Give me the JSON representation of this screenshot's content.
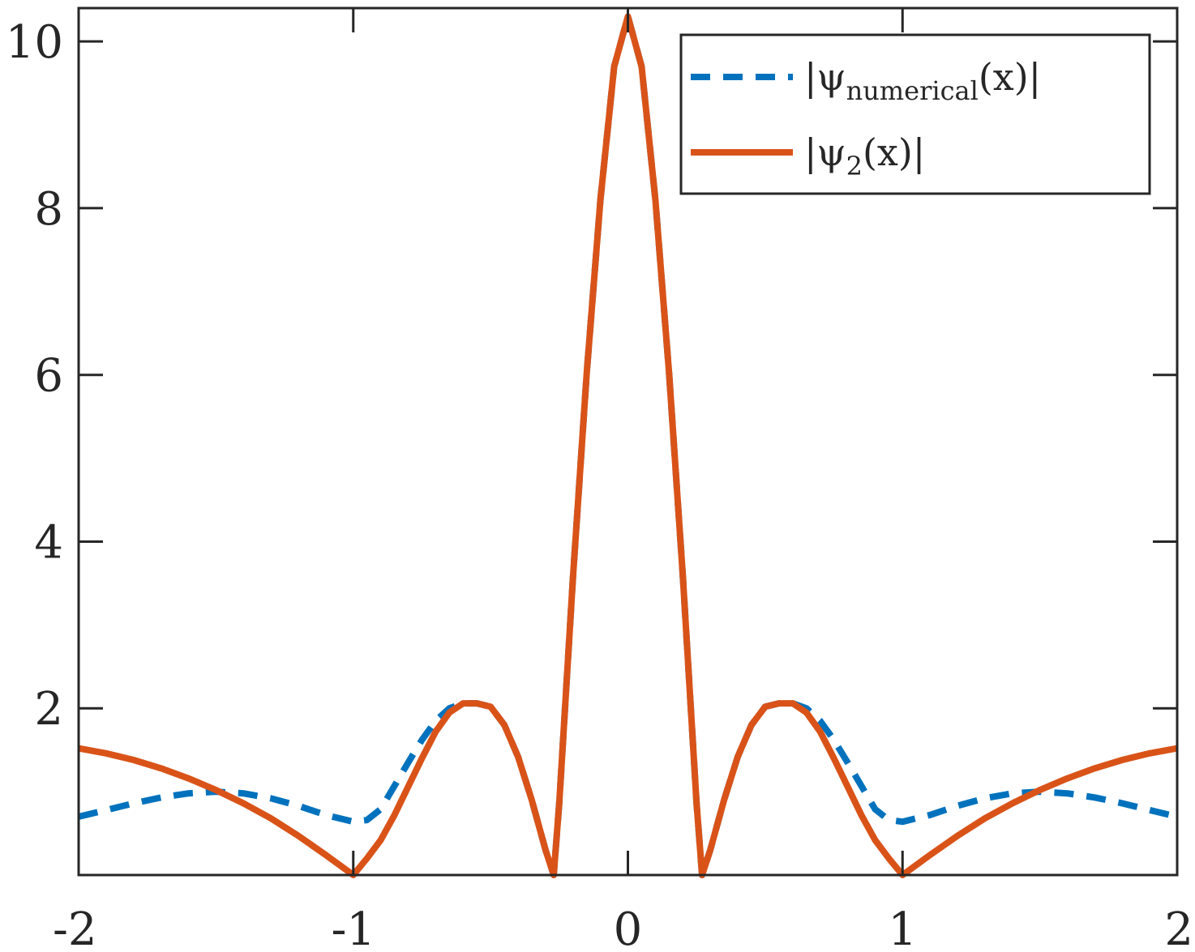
{
  "chart_data": {
    "type": "line",
    "xlim": [
      -2,
      2
    ],
    "ylim": [
      0,
      10.4
    ],
    "xticks": [
      -2,
      -1,
      0,
      1,
      2
    ],
    "yticks": [
      2,
      4,
      6,
      8,
      10
    ],
    "xtick_labels": [
      "-2",
      "-1",
      "0",
      "1",
      "2"
    ],
    "ytick_labels": [
      "2",
      "4",
      "6",
      "8",
      "10"
    ],
    "grid": false,
    "legend_position": "top-right",
    "series": [
      {
        "name": "|ψnumerical(x)|",
        "label_main": "|ψ",
        "label_sub": "numerical",
        "label_tail": "(x)|",
        "color": "#0072BD",
        "style": "dashed",
        "x": [
          -2.0,
          -1.9,
          -1.8,
          -1.7,
          -1.6,
          -1.5,
          -1.4,
          -1.3,
          -1.2,
          -1.1,
          -1.0,
          -0.95,
          -0.9,
          -0.85,
          -0.8,
          -0.75,
          -0.7,
          -0.65,
          -0.6,
          -0.55,
          -0.5,
          -0.45,
          -0.4,
          -0.35,
          -0.3,
          -0.27,
          -0.25,
          -0.2,
          -0.15,
          -0.1,
          -0.05,
          0.0,
          0.05,
          0.1,
          0.15,
          0.2,
          0.25,
          0.27,
          0.3,
          0.35,
          0.4,
          0.45,
          0.5,
          0.55,
          0.6,
          0.65,
          0.7,
          0.75,
          0.8,
          0.85,
          0.9,
          0.95,
          1.0,
          1.1,
          1.2,
          1.3,
          1.4,
          1.5,
          1.6,
          1.7,
          1.8,
          1.9,
          2.0
        ],
        "y": [
          0.7,
          0.78,
          0.86,
          0.93,
          0.98,
          1.0,
          0.98,
          0.92,
          0.83,
          0.72,
          0.64,
          0.66,
          0.79,
          1.07,
          1.35,
          1.62,
          1.85,
          2.0,
          2.06,
          2.06,
          2.02,
          1.8,
          1.42,
          0.9,
          0.3,
          0.0,
          0.86,
          3.58,
          6.02,
          8.1,
          9.7,
          10.3,
          9.7,
          8.1,
          6.02,
          3.58,
          0.86,
          0.0,
          0.3,
          0.9,
          1.42,
          1.8,
          2.02,
          2.06,
          2.06,
          2.0,
          1.85,
          1.62,
          1.35,
          1.07,
          0.79,
          0.66,
          0.64,
          0.72,
          0.83,
          0.92,
          0.98,
          1.0,
          0.98,
          0.93,
          0.86,
          0.78,
          0.7
        ]
      },
      {
        "name": "|ψ2(x)|",
        "label_main": "|ψ",
        "label_sub": "2",
        "label_tail": "(x)|",
        "color": "#D95319",
        "style": "solid",
        "x": [
          -2.0,
          -1.9,
          -1.8,
          -1.7,
          -1.6,
          -1.5,
          -1.4,
          -1.3,
          -1.2,
          -1.1,
          -1.0,
          -0.95,
          -0.9,
          -0.85,
          -0.8,
          -0.75,
          -0.7,
          -0.65,
          -0.6,
          -0.55,
          -0.5,
          -0.45,
          -0.4,
          -0.35,
          -0.3,
          -0.27,
          -0.25,
          -0.2,
          -0.15,
          -0.1,
          -0.05,
          0.0,
          0.05,
          0.1,
          0.15,
          0.2,
          0.25,
          0.27,
          0.3,
          0.35,
          0.4,
          0.45,
          0.5,
          0.55,
          0.6,
          0.65,
          0.7,
          0.75,
          0.8,
          0.85,
          0.9,
          0.95,
          1.0,
          1.1,
          1.2,
          1.3,
          1.4,
          1.5,
          1.6,
          1.7,
          1.8,
          1.9,
          2.0
        ],
        "y": [
          1.52,
          1.46,
          1.38,
          1.28,
          1.16,
          1.02,
          0.86,
          0.68,
          0.47,
          0.24,
          0.0,
          0.2,
          0.42,
          0.72,
          1.06,
          1.4,
          1.72,
          1.95,
          2.06,
          2.06,
          2.02,
          1.8,
          1.42,
          0.9,
          0.3,
          0.0,
          0.86,
          3.58,
          6.02,
          8.1,
          9.7,
          10.3,
          9.7,
          8.1,
          6.02,
          3.58,
          0.86,
          0.0,
          0.3,
          0.9,
          1.42,
          1.8,
          2.02,
          2.06,
          2.06,
          1.95,
          1.72,
          1.4,
          1.06,
          0.72,
          0.42,
          0.2,
          0.0,
          0.24,
          0.47,
          0.68,
          0.86,
          1.02,
          1.16,
          1.28,
          1.38,
          1.46,
          1.52
        ]
      }
    ]
  }
}
